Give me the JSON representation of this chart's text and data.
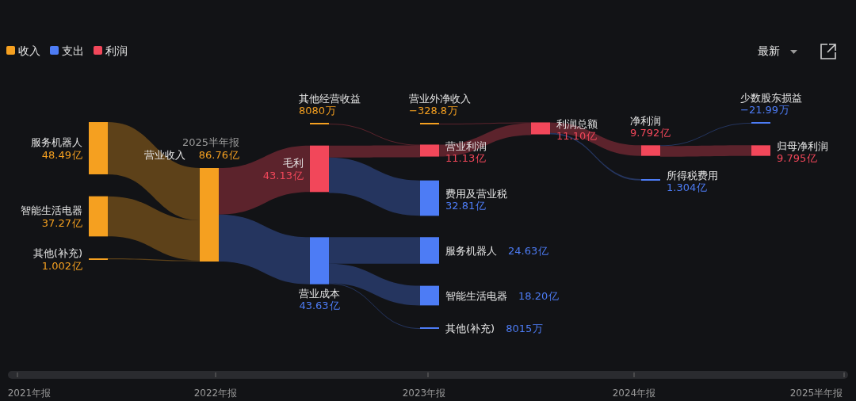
{
  "chart_data": {
    "type": "other",
    "categories": [
      "服务机器人",
      "智能生活电器",
      "其他(补充)",
      "营业收入",
      "毛利",
      "营业成本",
      "其他经营收益",
      "营业外净收入",
      "营业利润",
      "费用及营业税",
      "服务机器人",
      "智能生活电器",
      "其他(补充)",
      "利润总额",
      "净利润",
      "所得税费用",
      "少数股东损益",
      "归母净利润"
    ],
    "colors": [
      "#f5a020",
      "#f5a020",
      "#f5a020",
      "#f5a020",
      "#f2475a",
      "#4d7cf5",
      "#f5a020",
      "#f5a020",
      "#f2475a",
      "#4d7cf5",
      "#4d7cf5",
      "#4d7cf5",
      "#4d7cf5",
      "#f2475a",
      "#f2475a",
      "#4d7cf5",
      "#4d7cf5",
      "#f2475a"
    ],
    "series": [
      {
        "name": "收入",
        "color": "#f5a020",
        "values": [
          48.49,
          37.27,
          1.002,
          86.76,
          null,
          null,
          null,
          null,
          null,
          null,
          null,
          null,
          null,
          null,
          null,
          null,
          null,
          null
        ],
        "value_labels": [
          "48.49亿",
          "37.27亿",
          "1.002亿",
          "86.76亿",
          null,
          null,
          "8080万",
          "−328.8万",
          null,
          null,
          null,
          null,
          null,
          null,
          null,
          null,
          null,
          null
        ]
      },
      {
        "name": "支出",
        "color": "#4d7cf5",
        "values": [
          null,
          null,
          null,
          null,
          null,
          43.63,
          null,
          null,
          null,
          32.81,
          24.63,
          18.2,
          null,
          null,
          null,
          1.304,
          null,
          null
        ],
        "value_labels": [
          null,
          null,
          null,
          null,
          null,
          "43.63亿",
          null,
          null,
          null,
          "32.81亿",
          "24.63亿",
          "18.20亿",
          "8015万",
          null,
          null,
          "1.304亿",
          "−21.99万",
          null
        ]
      },
      {
        "name": "利润",
        "color": "#f2475a",
        "values": [
          null,
          null,
          null,
          null,
          43.13,
          null,
          null,
          null,
          11.13,
          null,
          null,
          null,
          null,
          11.1,
          9.792,
          null,
          null,
          9.795
        ],
        "value_labels": [
          null,
          null,
          null,
          null,
          "43.13亿",
          null,
          null,
          null,
          "11.13亿",
          null,
          null,
          null,
          null,
          "11.10亿",
          "9.792亿",
          null,
          null,
          "9.795亿"
        ]
      }
    ],
    "legend": "top left",
    "annotations": [
      "2025半年报",
      "最新",
      "2021年报",
      "2022年报",
      "2023年报",
      "2024年报",
      "2025半年报"
    ]
  }
}
